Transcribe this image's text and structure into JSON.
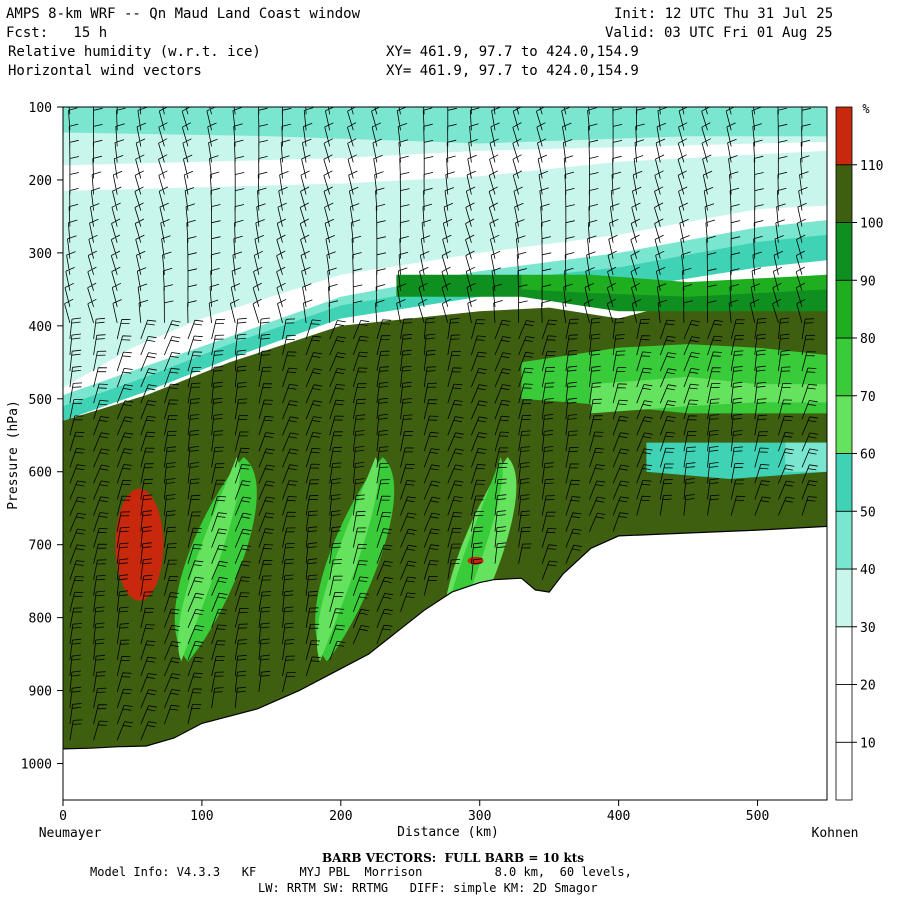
{
  "header": {
    "title": "AMPS 8-km WRF -- Qn Maud Land Coast window",
    "init": "Init: 12 UTC Thu 31 Jul 25",
    "fcst": "Fcst:   15 h",
    "valid": "Valid: 03 UTC Fri 01 Aug 25",
    "field1": "Relative humidity (w.r.t. ice)",
    "field2": "Horizontal wind vectors",
    "xy1": "XY= 461.9, 97.7 to 424.0,154.9",
    "xy2": "XY= 461.9, 97.7 to 424.0,154.9"
  },
  "footer": {
    "barb": "BARB VECTORS:  FULL BARB = 10 kts",
    "model1": "Model Info: V4.3.3   KF      MYJ PBL  Morrison          8.0 km,  60 levels,",
    "model2": "LW: RRTM SW: RRTMG   DIFF: simple KM: 2D Smagor"
  },
  "colors": {
    "lt_cyan": "#c8f5ec",
    "cyan": "#7ae6cf",
    "teal": "#3fd2b4",
    "lt_green": "#66e35e",
    "green": "#3acb3a",
    "mid_green": "#1fae1f",
    "dk_green": "#0e8f1f",
    "olive": "#3f5f10",
    "red": "#c8280c",
    "terrain": "#ffffff"
  },
  "chart_data": {
    "type": "heatmap",
    "title": "",
    "xlabel": "Distance (km)",
    "ylabel": "Pressure (hPa)",
    "x_start_label": "Neumayer",
    "x_end_label": "Kohnen",
    "xlim": [
      0,
      550
    ],
    "ylim": [
      1050,
      100
    ],
    "x_ticks": [
      0,
      100,
      200,
      300,
      400,
      500
    ],
    "y_ticks": [
      100,
      200,
      300,
      400,
      500,
      600,
      700,
      800,
      900,
      1000
    ],
    "colorbar_unit": "%",
    "colorbar_levels": [
      10,
      20,
      30,
      40,
      50,
      60,
      70,
      80,
      90,
      100,
      110
    ],
    "colorbar_colors": [
      "#ffffff",
      "#ffffff",
      "#c8f5ec",
      "#7ae6cf",
      "#3fd2b4",
      "#66e35e",
      "#3acb3a",
      "#1fae1f",
      "#0e8f1f",
      "#3f5f10",
      "#c8280c"
    ],
    "terrain_surface": [
      [
        0,
        980
      ],
      [
        20,
        979
      ],
      [
        40,
        977
      ],
      [
        60,
        976
      ],
      [
        80,
        965
      ],
      [
        100,
        945
      ],
      [
        140,
        925
      ],
      [
        170,
        900
      ],
      [
        200,
        870
      ],
      [
        220,
        850
      ],
      [
        240,
        820
      ],
      [
        260,
        790
      ],
      [
        280,
        765
      ],
      [
        300,
        752
      ],
      [
        310,
        748
      ],
      [
        330,
        746
      ],
      [
        340,
        762
      ],
      [
        350,
        765
      ],
      [
        360,
        740
      ],
      [
        380,
        705
      ],
      [
        400,
        688
      ],
      [
        450,
        684
      ],
      [
        500,
        680
      ],
      [
        550,
        675
      ]
    ],
    "layers": [
      {
        "name": "30",
        "top": [
          [
            0,
            215
          ],
          [
            200,
            205
          ],
          [
            300,
            195
          ],
          [
            400,
            175
          ],
          [
            550,
            160
          ]
        ],
        "bottom": [
          [
            0,
            485
          ],
          [
            50,
            430
          ],
          [
            100,
            390
          ],
          [
            200,
            330
          ],
          [
            300,
            300
          ],
          [
            400,
            275
          ],
          [
            500,
            240
          ],
          [
            550,
            235
          ]
        ]
      },
      {
        "name": "30",
        "top": [
          [
            0,
            100
          ],
          [
            550,
            100
          ]
        ],
        "bottom": [
          [
            0,
            180
          ],
          [
            100,
            175
          ],
          [
            200,
            170
          ],
          [
            300,
            160
          ],
          [
            400,
            155
          ],
          [
            500,
            150
          ],
          [
            550,
            148
          ]
        ]
      },
      {
        "name": "40",
        "top": [
          [
            0,
            100
          ],
          [
            200,
            100
          ],
          [
            400,
            100
          ],
          [
            550,
            100
          ]
        ],
        "bottom": [
          [
            0,
            135
          ],
          [
            150,
            140
          ],
          [
            300,
            150
          ],
          [
            450,
            140
          ],
          [
            550,
            140
          ]
        ]
      },
      {
        "name": "40",
        "top": [
          [
            0,
            495
          ],
          [
            60,
            455
          ],
          [
            120,
            415
          ],
          [
            200,
            360
          ],
          [
            300,
            325
          ],
          [
            400,
            300
          ],
          [
            500,
            265
          ],
          [
            550,
            255
          ]
        ],
        "bottom": [
          [
            0,
            520
          ],
          [
            60,
            480
          ],
          [
            120,
            435
          ],
          [
            200,
            380
          ],
          [
            300,
            345
          ],
          [
            400,
            335
          ],
          [
            500,
            300
          ],
          [
            550,
            290
          ]
        ]
      },
      {
        "name": "60",
        "top": [
          [
            0,
            510
          ],
          [
            60,
            470
          ],
          [
            120,
            425
          ],
          [
            200,
            372
          ],
          [
            300,
            340
          ],
          [
            400,
            320
          ],
          [
            500,
            285
          ],
          [
            550,
            275
          ]
        ],
        "bottom": [
          [
            0,
            530
          ],
          [
            60,
            490
          ],
          [
            120,
            445
          ],
          [
            200,
            390
          ],
          [
            300,
            360
          ],
          [
            400,
            350
          ],
          [
            500,
            320
          ],
          [
            550,
            310
          ]
        ]
      },
      {
        "name": "100",
        "top": [
          [
            0,
            530
          ],
          [
            60,
            495
          ],
          [
            120,
            450
          ],
          [
            200,
            400
          ],
          [
            300,
            380
          ],
          [
            350,
            375
          ],
          [
            400,
            390
          ],
          [
            500,
            340
          ],
          [
            550,
            330
          ]
        ],
        "bottom": [
          [
            0,
            980
          ],
          [
            550,
            980
          ]
        ]
      }
    ]
  }
}
